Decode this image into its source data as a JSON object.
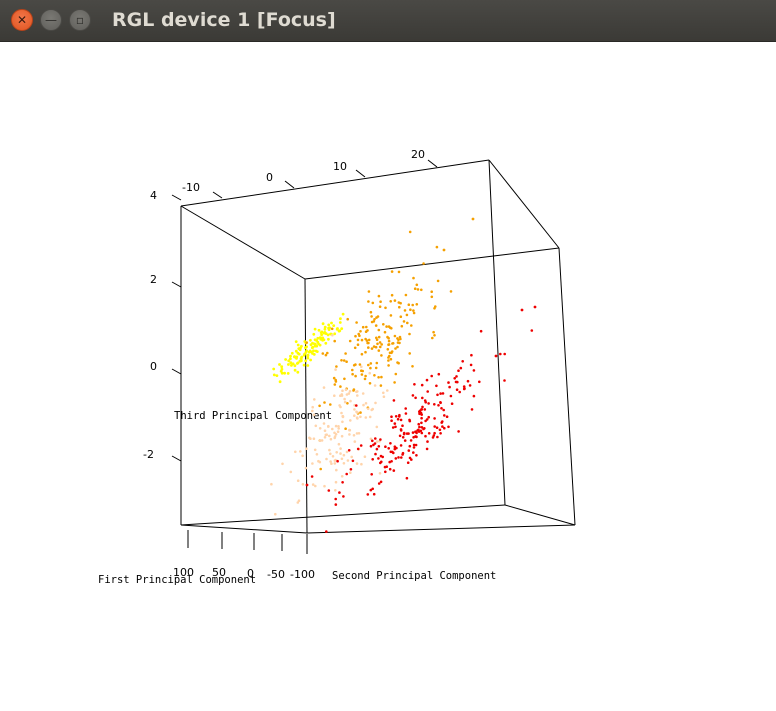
{
  "window": {
    "title": "RGL device 1 [Focus]",
    "close_icon": "close-icon",
    "minimize_icon": "minimize-icon",
    "maximize_icon": "maximize-icon"
  },
  "plot": {
    "type": "scatter3d",
    "xlabel": "First Principal Component",
    "ylabel": "Second Principal Component",
    "zlabel": "Third Principal Component",
    "ticks": {
      "top_axis": [
        "-10",
        "0",
        "10",
        "20"
      ],
      "left_axis": [
        "4",
        "2",
        "0",
        "-2"
      ],
      "bottom_axis": [
        "100",
        "50",
        "0",
        "-50",
        "-100"
      ]
    },
    "colors": {
      "yellow": "#ffff00",
      "orange": "#f5a000",
      "peach": "#ffd4ab",
      "red": "#ee0000",
      "box": "#000000"
    }
  },
  "chart_data": {
    "type": "scatter",
    "title": "",
    "xlabel": "First Principal Component",
    "ylabel": "Second Principal Component",
    "zlabel": "Third Principal Component",
    "series": [
      {
        "color": "#ffff00",
        "approx_points": 120
      },
      {
        "color": "#f5a000",
        "approx_points": 180
      },
      {
        "color": "#ffd4ab",
        "approx_points": 140
      },
      {
        "color": "#ee0000",
        "approx_points": 200
      }
    ],
    "grid": false
  }
}
